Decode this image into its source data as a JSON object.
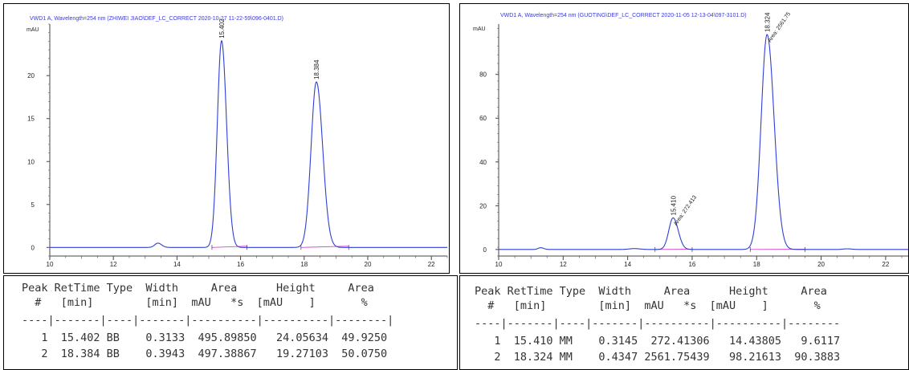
{
  "charts": [
    {
      "title": "VWD1 A, Wavelength=254 nm (ZHIWEI JIAO\\DEF_LC_CORRECT 2020-10-27 11-22-59\\096-0401.D)",
      "unit": "mAU",
      "line_color": "#2e3fd6",
      "baseline_color": "#d946d9"
    },
    {
      "title": "VWD1 A, Wavelength=254 nm (GUOTING\\DEF_LC_CORRECT 2020-11-05 12-13-04\\097-3101.D)",
      "unit": "mAU",
      "line_color": "#2e3fd6",
      "baseline_color": "#d946d9"
    }
  ],
  "chart_data": [
    {
      "type": "line",
      "title": "VWD1 A, Wavelength=254 nm (ZHIWEI JIAO\\DEF_LC_CORRECT 2020-10-27 11-22-59\\096-0401.D)",
      "xlabel": "",
      "ylabel": "mAU",
      "xlim": [
        10,
        22.5
      ],
      "ylim": [
        -1,
        26
      ],
      "x_ticks": [
        10,
        12,
        14,
        16,
        18,
        20,
        22
      ],
      "y_ticks": [
        0,
        5,
        10,
        15,
        20
      ],
      "grid": false,
      "peaks": [
        {
          "rt": 13.4,
          "height": 0.5,
          "sigma": 0.1,
          "labeled": false
        },
        {
          "rt": 15.402,
          "height": 24.05634,
          "sigma": 0.1331,
          "labeled": true,
          "label": "15.402"
        },
        {
          "rt": 18.384,
          "height": 19.27103,
          "sigma": 0.1675,
          "labeled": true,
          "label": "18.384"
        }
      ],
      "integration_segments": [
        [
          15.1,
          16.2
        ],
        [
          17.9,
          19.4
        ]
      ]
    },
    {
      "type": "line",
      "title": "VWD1 A, Wavelength=254 nm (GUOTING\\DEF_LC_CORRECT 2020-11-05 12-13-04\\097-3101.D)",
      "xlabel": "",
      "ylabel": "mAU",
      "xlim": [
        10,
        22.7
      ],
      "ylim": [
        -3,
        103
      ],
      "x_ticks": [
        10,
        12,
        14,
        16,
        18,
        20,
        22
      ],
      "y_ticks": [
        0,
        20,
        40,
        60,
        80
      ],
      "grid": false,
      "peaks": [
        {
          "rt": 11.3,
          "height": 0.8,
          "sigma": 0.08,
          "labeled": false
        },
        {
          "rt": 14.2,
          "height": 0.4,
          "sigma": 0.15,
          "labeled": false
        },
        {
          "rt": 15.41,
          "height": 14.43805,
          "sigma": 0.1336,
          "labeled": true,
          "label": "15.410",
          "area_label": "Area: 272.413"
        },
        {
          "rt": 18.324,
          "height": 98.21613,
          "sigma": 0.1846,
          "labeled": true,
          "label": "18.324",
          "area_label": "Area: 2561.75"
        },
        {
          "rt": 20.8,
          "height": 0.3,
          "sigma": 0.12,
          "labeled": false
        }
      ],
      "integration_segments": [
        [
          14.85,
          16.0
        ],
        [
          17.8,
          19.5
        ]
      ]
    }
  ],
  "tables": [
    {
      "header1": "Peak RetTime Type  Width     Area      Height     Area",
      "header2": "  #   [min]        [min]  mAU   *s  [mAU    ]       %",
      "separator": "----|-------|----|-------|----------|----------|--------|",
      "rows": [
        "   1  15.402 BB    0.3133  495.89850   24.05634  49.9250",
        "   2  18.384 BB    0.3943  497.38867   19.27103  50.0750"
      ]
    },
    {
      "header1": "Peak RetTime Type  Width     Area      Height     Area",
      "header2": "  #   [min]        [min]  mAU   *s  [mAU    ]       %",
      "separator": "----|-------|----|-------|----------|----------|--------",
      "rows": [
        "   1  15.410 MM    0.3145  272.41306   14.43805   9.6117",
        "   2  18.324 MM    0.4347 2561.75439   98.21613  90.3883"
      ]
    }
  ]
}
